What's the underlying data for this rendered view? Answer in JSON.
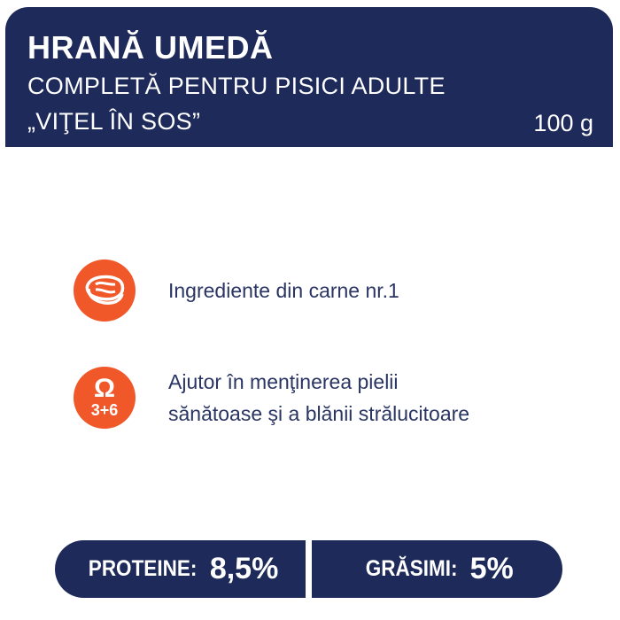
{
  "header": {
    "title": "HRANĂ UMEDĂ",
    "subtitle": "COMPLETĂ PENTRU PISICI ADULTE",
    "variant": "„VIŢEL ÎN SOS”",
    "weight": "100 g"
  },
  "features": [
    {
      "icon": "meat-steak-icon",
      "text": "Ingrediente din carne nr.1"
    },
    {
      "icon": "omega-3-6-icon",
      "icon_symbol": "Ω",
      "icon_label": "3+6",
      "line1": "Ajutor în menţinerea pielii",
      "line2": "sănătoase şi a blănii strălucitoare"
    }
  ],
  "nutrition": {
    "protein_label": "PROTEINE:",
    "protein_value": "8,5%",
    "fat_label": "GRĂSIMI:",
    "fat_value": "5%"
  },
  "colors": {
    "navy": "#1e2a5a",
    "accent": "#f0582a"
  }
}
